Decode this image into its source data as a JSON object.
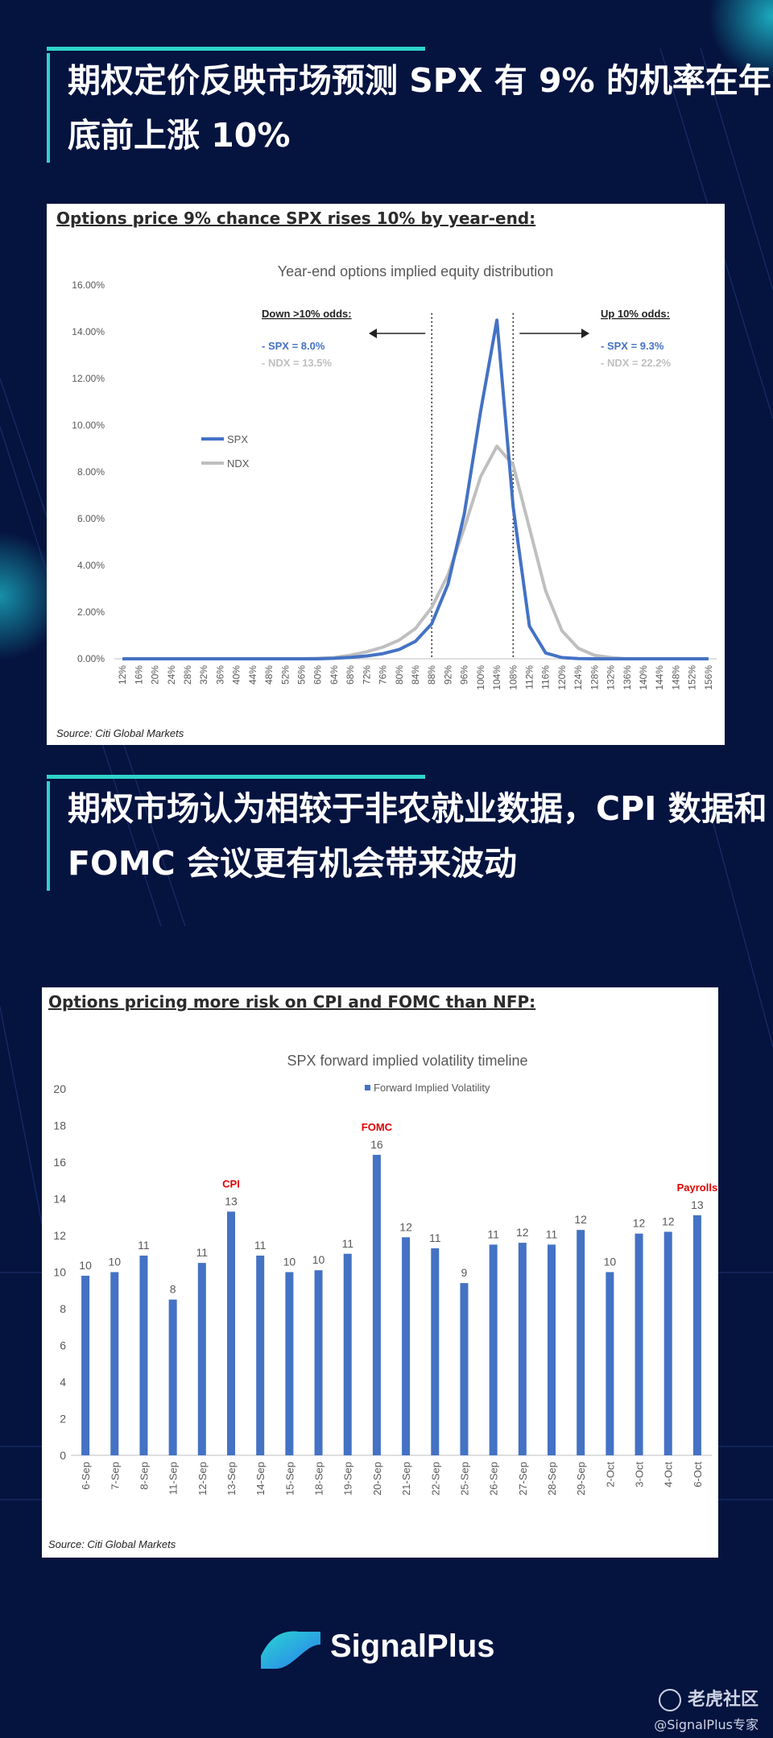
{
  "page": {
    "heading1": "期权定价反映市场预测 SPX 有 9% 的机率在年底前上涨 10%",
    "heading2": "期权市场认为相较于非农就业数据，CPI 数据和 FOMC 会议更有机会带来波动",
    "brand": "SignalPlus",
    "watermark": "老虎社区",
    "watermark_handle": "@SignalPlus专家",
    "colors": {
      "background": "#05133f",
      "accent": "#2fd3c8",
      "spx": "#4472c4",
      "ndx": "#bfbfbf",
      "annotation": "#e00000"
    }
  },
  "chart1": {
    "panel_title": "Options price 9% chance SPX rises 10% by year-end",
    "panel_title_suffix": ":",
    "source": "Source: Citi Global Markets",
    "left_label": "Down >10% odds:",
    "left_spx": "- SPX = 8.0%",
    "left_ndx": "- NDX = 13.5%",
    "right_label": "Up 10% odds:",
    "right_spx": "- SPX = 9.3%",
    "right_ndx": "- NDX = 22.2%"
  },
  "chart2": {
    "panel_title": "Options pricing more risk on CPI and FOMC than NFP",
    "panel_title_suffix": ":",
    "source": "Source: Citi Global Markets",
    "legend": "Forward Implied Volatility",
    "annotations": [
      {
        "category": "13-Sep",
        "text": "CPI"
      },
      {
        "category": "20-Sep",
        "text": "FOMC"
      },
      {
        "category": "6-Oct",
        "text": "Payrolls"
      }
    ]
  },
  "chart_data": [
    {
      "type": "line",
      "title": "Year-end options implied equity distribution",
      "x": [
        "12%",
        "16%",
        "20%",
        "24%",
        "28%",
        "32%",
        "36%",
        "40%",
        "44%",
        "48%",
        "52%",
        "56%",
        "60%",
        "64%",
        "68%",
        "72%",
        "76%",
        "80%",
        "84%",
        "88%",
        "92%",
        "96%",
        "100%",
        "104%",
        "108%",
        "112%",
        "116%",
        "120%",
        "124%",
        "128%",
        "132%",
        "136%",
        "140%",
        "144%",
        "148%",
        "152%",
        "156%"
      ],
      "yticks": [
        "0.00%",
        "2.00%",
        "4.00%",
        "6.00%",
        "8.00%",
        "10.00%",
        "12.00%",
        "14.00%",
        "16.00%"
      ],
      "ylim": [
        0,
        16
      ],
      "vlines": [
        "88%",
        "108%"
      ],
      "legend_position": "left",
      "series": [
        {
          "name": "SPX",
          "values": [
            0,
            0,
            0,
            0,
            0,
            0,
            0,
            0,
            0,
            0,
            0,
            0,
            0,
            0.02,
            0.06,
            0.12,
            0.22,
            0.4,
            0.75,
            1.5,
            3.2,
            6.2,
            10.6,
            14.5,
            6.5,
            1.4,
            0.25,
            0.05,
            0.01,
            0,
            0,
            0,
            0,
            0,
            0,
            0,
            0
          ]
        },
        {
          "name": "NDX",
          "values": [
            0,
            0,
            0,
            0,
            0,
            0,
            0,
            0,
            0,
            0,
            0,
            0,
            0.02,
            0.05,
            0.15,
            0.3,
            0.5,
            0.8,
            1.3,
            2.2,
            3.6,
            5.6,
            7.8,
            9.1,
            8.3,
            5.6,
            2.9,
            1.2,
            0.45,
            0.15,
            0.05,
            0,
            0,
            0,
            0,
            0,
            0
          ]
        }
      ]
    },
    {
      "type": "bar",
      "title": "SPX forward implied volatility timeline",
      "categories": [
        "6-Sep",
        "7-Sep",
        "8-Sep",
        "11-Sep",
        "12-Sep",
        "13-Sep",
        "14-Sep",
        "15-Sep",
        "18-Sep",
        "19-Sep",
        "20-Sep",
        "21-Sep",
        "22-Sep",
        "25-Sep",
        "26-Sep",
        "27-Sep",
        "28-Sep",
        "29-Sep",
        "2-Oct",
        "3-Oct",
        "4-Oct",
        "6-Oct"
      ],
      "series": [
        {
          "name": "Forward Implied Volatility",
          "values": [
            9.8,
            10.0,
            10.9,
            8.5,
            10.5,
            13.3,
            10.9,
            10.0,
            10.1,
            11.0,
            16.4,
            11.9,
            11.3,
            9.4,
            11.5,
            11.6,
            11.5,
            12.3,
            10.0,
            12.1,
            12.2,
            13.1
          ]
        }
      ],
      "data_labels": [
        "10",
        "10",
        "11",
        "8",
        "11",
        "13",
        "11",
        "10",
        "10",
        "11",
        "16",
        "12",
        "11",
        "9",
        "11",
        "12",
        "11",
        "12",
        "10",
        "12",
        "12",
        "13"
      ],
      "yticks": [
        "0",
        "2",
        "4",
        "6",
        "8",
        "10",
        "12",
        "14",
        "16",
        "18",
        "20"
      ],
      "ylim": [
        0,
        20
      ],
      "legend_position": "top"
    }
  ]
}
